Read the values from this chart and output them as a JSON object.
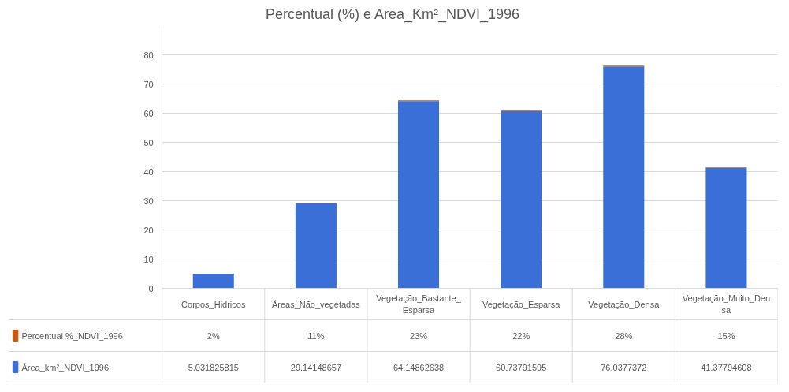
{
  "chart_data": {
    "type": "bar",
    "title": "Percentual (%) e Area_Km²_NDVI_1996",
    "stacked": true,
    "categories": [
      "Corpos_Hidricos",
      "Áreas_Não_vegetadas",
      "Vegetação_Bastante_Esparsa",
      "Vegetação_Esparsa",
      "Vegetação_Densa",
      "Vegetação_Muito_Densa"
    ],
    "series": [
      {
        "name": "Área_km²_NDVI_1996",
        "color": "#3a6fd8",
        "values": [
          5.031825815,
          29.14148657,
          64.14862638,
          60.73791595,
          76.0377372,
          41.37794608
        ],
        "value_labels": [
          "5.031825815",
          "29.14148657",
          "64.14862638",
          "60.73791595",
          "76.0377372",
          "41.37794608"
        ]
      },
      {
        "name": "Percentual %_NDVI_1996",
        "color": "#c55a11",
        "values": [
          0.02,
          0.11,
          0.23,
          0.22,
          0.28,
          0.15
        ],
        "value_labels": [
          "2%",
          "11%",
          "23%",
          "22%",
          "28%",
          "15%"
        ]
      }
    ],
    "ylim": [
      0,
      90
    ],
    "yticks": [
      0,
      10,
      20,
      30,
      40,
      50,
      60,
      70,
      80
    ],
    "grid": "y",
    "legend": "bottom left"
  }
}
